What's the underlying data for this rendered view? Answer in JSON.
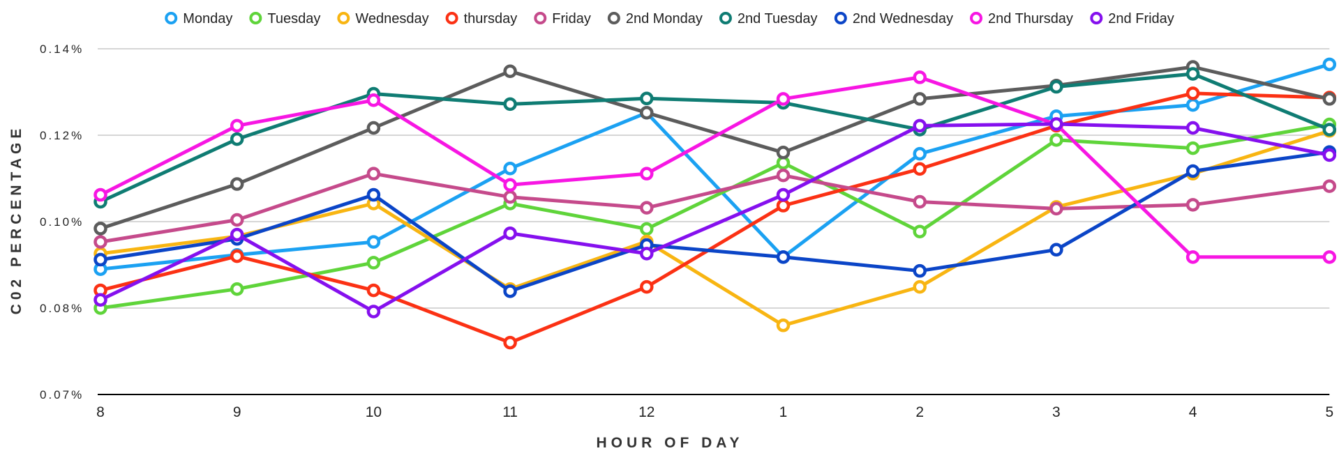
{
  "chart_data": {
    "type": "line",
    "title": "",
    "xlabel": "HOUR OF DAY",
    "ylabel": "C02 PERCENTAGE",
    "categories": [
      "8",
      "9",
      "10",
      "11",
      "12",
      "1",
      "2",
      "3",
      "4",
      "5"
    ],
    "yticks": [
      0.07,
      0.08,
      0.1,
      0.12,
      0.14
    ],
    "ytick_labels": [
      "0.07%",
      "0.08%",
      "0.10%",
      "0.12%",
      "0.14%"
    ],
    "ylim": [
      0.07,
      0.14
    ],
    "grid": true,
    "legend": "top",
    "series": [
      {
        "name": "Monday",
        "color": "#1ba1f2",
        "values": [
          0.089,
          0.0923,
          0.0953,
          0.1123,
          0.1252,
          0.0918,
          0.1157,
          0.1244,
          0.127,
          0.1364
        ]
      },
      {
        "name": "Tuesday",
        "color": "#5fd43a",
        "values": [
          0.08,
          0.0844,
          0.0905,
          0.1042,
          0.0983,
          0.1136,
          0.0977,
          0.1189,
          0.117,
          0.1225
        ]
      },
      {
        "name": "Wednesday",
        "color": "#f8b512",
        "values": [
          0.0926,
          0.0966,
          0.1042,
          0.0844,
          0.0954,
          0.078,
          0.0849,
          0.1034,
          0.1111,
          0.121
        ]
      },
      {
        "name": "thursday",
        "color": "#fb3114",
        "values": [
          0.0841,
          0.092,
          0.0841,
          0.076,
          0.0849,
          0.1037,
          0.1122,
          0.1222,
          0.1297,
          0.1287
        ]
      },
      {
        "name": "Friday",
        "color": "#c54a8b",
        "values": [
          0.0953,
          0.1004,
          0.1111,
          0.1057,
          0.1032,
          0.1107,
          0.1046,
          0.103,
          0.1039,
          0.1082
        ]
      },
      {
        "name": "2nd Monday",
        "color": "#5c5c5c",
        "values": [
          0.0984,
          0.1087,
          0.1217,
          0.1348,
          0.1252,
          0.116,
          0.1284,
          0.1315,
          0.1358,
          0.1284
        ]
      },
      {
        "name": "2nd Tuesday",
        "color": "#0f7c73",
        "values": [
          0.1046,
          0.1191,
          0.1296,
          0.1272,
          0.1285,
          0.1275,
          0.1213,
          0.1312,
          0.1342,
          0.1213
        ]
      },
      {
        "name": "2nd Wednesday",
        "color": "#0b45c7",
        "values": [
          0.0912,
          0.096,
          0.1062,
          0.0839,
          0.0946,
          0.0918,
          0.0886,
          0.0935,
          0.1117,
          0.1161
        ]
      },
      {
        "name": "2nd Thursday",
        "color": "#f716e3",
        "values": [
          0.1062,
          0.1222,
          0.1281,
          0.1085,
          0.1111,
          0.1284,
          0.1334,
          0.1225,
          0.0918,
          0.0918
        ]
      },
      {
        "name": "2nd Friday",
        "color": "#8510ee",
        "values": [
          0.0819,
          0.097,
          0.0796,
          0.0973,
          0.0926,
          0.1062,
          0.1222,
          0.1226,
          0.1217,
          0.1154
        ]
      }
    ]
  }
}
